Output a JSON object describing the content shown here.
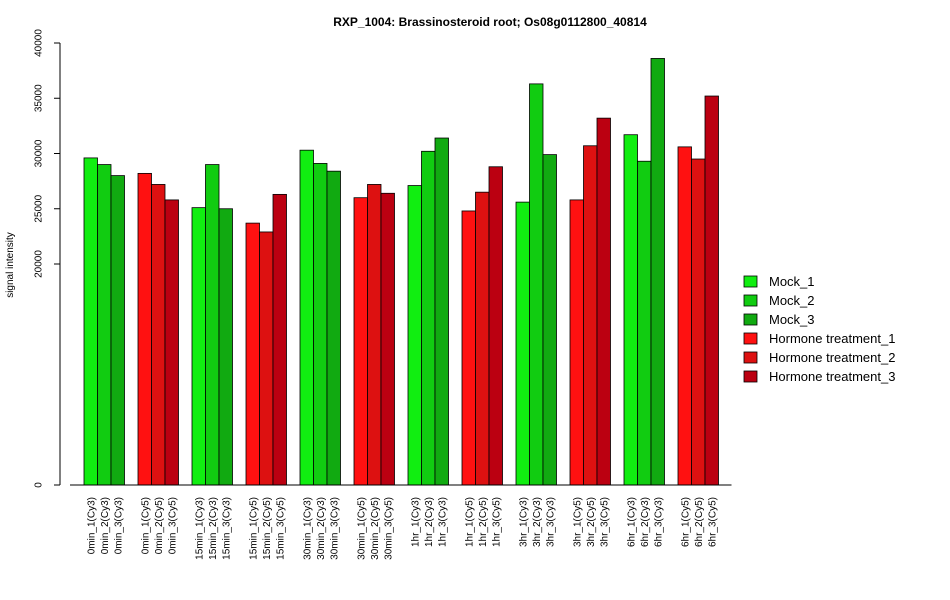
{
  "chart_data": {
    "type": "bar",
    "title": "RXP_1004: Brassinosteroid root; Os08g0112800_40814",
    "ylabel": "signal intensity",
    "xlabel": "",
    "ylim": [
      0,
      40000
    ],
    "yticks": [
      0,
      20000,
      25000,
      30000,
      35000,
      40000
    ],
    "ytick_labels": [
      "0",
      "20000",
      "25000",
      "30000",
      "35000",
      "40000"
    ],
    "y_axis_break": "axis has uneven spacing: 0 at bottom, 20000-40000 evenly spaced above",
    "legend_position": "right",
    "groups": [
      {
        "labels": [
          "0min_1(Cy3)",
          "0min_2(Cy3)",
          "0min_3(Cy3)"
        ],
        "values": [
          29600,
          29000,
          28000
        ],
        "colors": [
          "#11ee11",
          "#11cc11",
          "#11aa11"
        ]
      },
      {
        "labels": [
          "0min_1(Cy5)",
          "0min_2(Cy5)",
          "0min_3(Cy5)"
        ],
        "values": [
          28200,
          27200,
          25800
        ],
        "colors": [
          "#ff1111",
          "#dd1111",
          "#bb0011"
        ]
      },
      {
        "labels": [
          "15min_1(Cy3)",
          "15min_2(Cy3)",
          "15min_3(Cy3)"
        ],
        "values": [
          25100,
          29000,
          25000
        ],
        "colors": [
          "#11ee11",
          "#11cc11",
          "#11aa11"
        ]
      },
      {
        "labels": [
          "15min_1(Cy5)",
          "15min_2(Cy5)",
          "15min_3(Cy5)"
        ],
        "values": [
          23700,
          22900,
          26300
        ],
        "colors": [
          "#ff1111",
          "#dd1111",
          "#bb0011"
        ]
      },
      {
        "labels": [
          "30min_1(Cy3)",
          "30min_2(Cy3)",
          "30min_3(Cy3)"
        ],
        "values": [
          30300,
          29100,
          28400
        ],
        "colors": [
          "#11ee11",
          "#11cc11",
          "#11aa11"
        ]
      },
      {
        "labels": [
          "30min_1(Cy5)",
          "30min_2(Cy5)",
          "30min_3(Cy5)"
        ],
        "values": [
          26000,
          27200,
          26400
        ],
        "colors": [
          "#ff1111",
          "#dd1111",
          "#bb0011"
        ]
      },
      {
        "labels": [
          "1hr_1(Cy3)",
          "1hr_2(Cy3)",
          "1hr_3(Cy3)"
        ],
        "values": [
          27100,
          30200,
          31400
        ],
        "colors": [
          "#11ee11",
          "#11cc11",
          "#11aa11"
        ]
      },
      {
        "labels": [
          "1hr_1(Cy5)",
          "1hr_2(Cy5)",
          "1hr_3(Cy5)"
        ],
        "values": [
          24800,
          26500,
          28800
        ],
        "colors": [
          "#ff1111",
          "#dd1111",
          "#bb0011"
        ]
      },
      {
        "labels": [
          "3hr_1(Cy3)",
          "3hr_2(Cy3)",
          "3hr_3(Cy3)"
        ],
        "values": [
          25600,
          36300,
          29900
        ],
        "colors": [
          "#11ee11",
          "#11cc11",
          "#11aa11"
        ]
      },
      {
        "labels": [
          "3hr_1(Cy5)",
          "3hr_2(Cy5)",
          "3hr_3(Cy5)"
        ],
        "values": [
          25800,
          30700,
          33200
        ],
        "colors": [
          "#ff1111",
          "#dd1111",
          "#bb0011"
        ]
      },
      {
        "labels": [
          "6hr_1(Cy3)",
          "6hr_2(Cy3)",
          "6hr_3(Cy3)"
        ],
        "values": [
          31700,
          29300,
          38600
        ],
        "colors": [
          "#11ee11",
          "#11cc11",
          "#11aa11"
        ]
      },
      {
        "labels": [
          "6hr_1(Cy5)",
          "6hr_2(Cy5)",
          "6hr_3(Cy5)"
        ],
        "values": [
          30600,
          29500,
          35200
        ],
        "colors": [
          "#ff1111",
          "#dd1111",
          "#bb0011"
        ]
      }
    ],
    "legend": [
      {
        "label": "Mock_1",
        "color": "#11ee11"
      },
      {
        "label": "Mock_2",
        "color": "#11cc11"
      },
      {
        "label": "Mock_3",
        "color": "#11aa11"
      },
      {
        "label": "Hormone treatment_1",
        "color": "#ff1111"
      },
      {
        "label": "Hormone treatment_2",
        "color": "#dd1111"
      },
      {
        "label": "Hormone treatment_3",
        "color": "#bb0011"
      }
    ]
  }
}
